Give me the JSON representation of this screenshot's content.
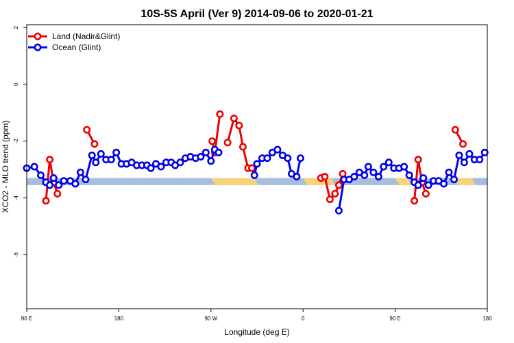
{
  "chart_data": {
    "type": "line",
    "title": "10S-5S April (Ver 9)   2014-09-06 to 2020-01-21",
    "xlabel": "Longitude (deg E)",
    "ylabel": "XCO2 - MLO trend (ppm)",
    "xlim": [
      90,
      450
    ],
    "ylim": [
      -7.9,
      2.1
    ],
    "x_ticks": [
      {
        "value": 90,
        "label": "90 E"
      },
      {
        "value": 162,
        "label": "180"
      },
      {
        "value": 234,
        "label": "90 W"
      },
      {
        "value": 306,
        "label": "0"
      },
      {
        "value": 378,
        "label": "90 E"
      },
      {
        "value": 450,
        "label": "180"
      }
    ],
    "y_ticks": [
      {
        "value": 2,
        "label": "2"
      },
      {
        "value": 0,
        "label": "0"
      },
      {
        "value": -2,
        "label": "-2"
      },
      {
        "value": -4,
        "label": "-4"
      },
      {
        "value": -6,
        "label": "-6"
      }
    ],
    "grid": false,
    "legend_position": "top-left",
    "surface_band": {
      "y_range": [
        -3.3,
        -3.55
      ],
      "colors": {
        "ocean": "#a7bede",
        "land": "#f6d57a"
      },
      "land_spans": [
        [
          234,
          271
        ],
        [
          306,
          331
        ],
        [
          378,
          391
        ],
        [
          424,
          441
        ]
      ]
    },
    "series": [
      {
        "name": "Land (Nadir&Glint)",
        "color": "#ee0000",
        "segments": [
          [
            [
              105,
              -4.1
            ],
            [
              108,
              -2.65
            ],
            [
              111,
              -3.45
            ],
            [
              114,
              -3.85
            ]
          ],
          [
            [
              137,
              -1.6
            ],
            [
              143,
              -2.1
            ]
          ],
          [
            [
              235,
              -2.0
            ],
            [
              237,
              -2.4
            ],
            [
              241,
              -1.05
            ]
          ],
          [
            [
              247,
              -2.05
            ],
            [
              252,
              -1.2
            ],
            [
              256,
              -1.45
            ],
            [
              259,
              -2.2
            ],
            [
              263,
              -2.95
            ],
            [
              266,
              -2.95
            ]
          ],
          [
            [
              320,
              -3.3
            ],
            [
              323,
              -3.25
            ],
            [
              327,
              -4.05
            ],
            [
              331,
              -3.85
            ],
            [
              334,
              -3.55
            ],
            [
              337,
              -3.15
            ]
          ],
          [
            [
              393,
              -4.1
            ],
            [
              396,
              -2.65
            ],
            [
              399,
              -3.45
            ],
            [
              402,
              -3.85
            ]
          ],
          [
            [
              425,
              -1.6
            ],
            [
              431,
              -2.1
            ]
          ]
        ]
      },
      {
        "name": "Ocean (Glint)",
        "color": "#0000ee",
        "segments": [
          [
            [
              90,
              -2.95
            ],
            [
              96,
              -2.9
            ],
            [
              101,
              -3.2
            ],
            [
              105,
              -3.45
            ],
            [
              108,
              -3.55
            ],
            [
              111,
              -3.3
            ],
            [
              115,
              -3.55
            ],
            [
              119,
              -3.4
            ],
            [
              124,
              -3.4
            ],
            [
              128,
              -3.5
            ],
            [
              132,
              -3.1
            ],
            [
              136,
              -3.35
            ],
            [
              141,
              -2.5
            ],
            [
              144,
              -2.75
            ],
            [
              148,
              -2.45
            ],
            [
              152,
              -2.65
            ],
            [
              156,
              -2.65
            ],
            [
              160,
              -2.4
            ],
            [
              164,
              -2.8
            ],
            [
              168,
              -2.8
            ],
            [
              172,
              -2.75
            ],
            [
              176,
              -2.85
            ],
            [
              180,
              -2.85
            ],
            [
              184,
              -2.85
            ],
            [
              187,
              -2.95
            ],
            [
              191,
              -2.8
            ],
            [
              195,
              -2.9
            ],
            [
              199,
              -2.75
            ],
            [
              203,
              -2.75
            ],
            [
              206,
              -2.85
            ],
            [
              210,
              -2.75
            ],
            [
              214,
              -2.6
            ],
            [
              218,
              -2.55
            ],
            [
              222,
              -2.6
            ],
            [
              226,
              -2.55
            ],
            [
              230,
              -2.4
            ],
            [
              234,
              -2.7
            ],
            [
              237,
              -2.3
            ],
            [
              240,
              -2.4
            ]
          ],
          [
            [
              268,
              -3.2
            ],
            [
              270,
              -2.8
            ],
            [
              274,
              -2.6
            ],
            [
              278,
              -2.6
            ],
            [
              282,
              -2.4
            ],
            [
              286,
              -2.3
            ],
            [
              290,
              -2.5
            ],
            [
              294,
              -2.6
            ],
            [
              297,
              -3.15
            ],
            [
              301,
              -3.25
            ],
            [
              304,
              -2.6
            ]
          ],
          [
            [
              334,
              -4.45
            ],
            [
              338,
              -3.35
            ],
            [
              342,
              -3.35
            ],
            [
              346,
              -3.25
            ],
            [
              350,
              -3.1
            ],
            [
              354,
              -3.2
            ],
            [
              357,
              -2.9
            ],
            [
              361,
              -3.1
            ],
            [
              365,
              -3.25
            ],
            [
              369,
              -2.9
            ],
            [
              373,
              -2.75
            ],
            [
              377,
              -2.95
            ],
            [
              381,
              -2.95
            ],
            [
              385,
              -2.9
            ],
            [
              389,
              -3.2
            ],
            [
              393,
              -3.45
            ],
            [
              396,
              -3.55
            ],
            [
              400,
              -3.3
            ],
            [
              404,
              -3.55
            ],
            [
              408,
              -3.4
            ],
            [
              412,
              -3.4
            ],
            [
              416,
              -3.5
            ],
            [
              420,
              -3.1
            ],
            [
              424,
              -3.35
            ],
            [
              428,
              -2.5
            ],
            [
              432,
              -2.75
            ],
            [
              436,
              -2.45
            ],
            [
              440,
              -2.65
            ],
            [
              444,
              -2.65
            ],
            [
              448,
              -2.4
            ]
          ]
        ]
      }
    ]
  }
}
